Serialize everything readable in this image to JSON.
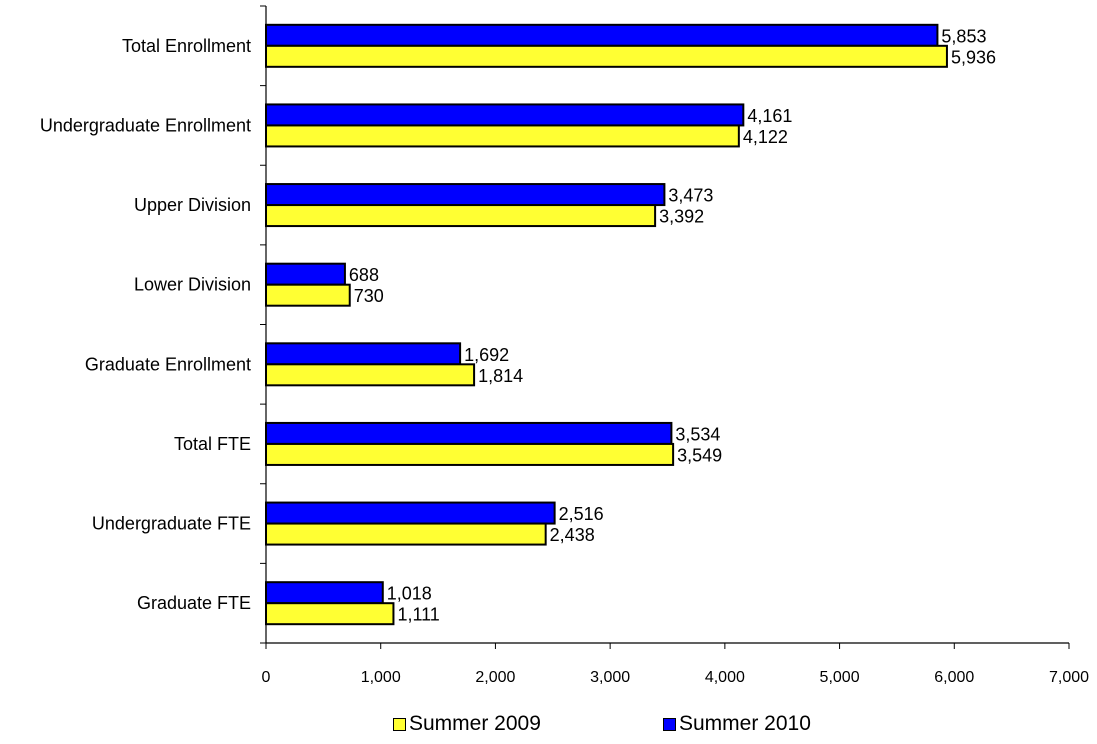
{
  "chart_data": {
    "type": "bar",
    "orientation": "horizontal",
    "title": "",
    "xlabel": "",
    "ylabel": "",
    "categories": [
      "Total Enrollment",
      "Undergraduate Enrollment",
      "Upper Division",
      "Lower Division",
      "Graduate Enrollment",
      "Total FTE",
      "Undergraduate FTE",
      "Graduate FTE"
    ],
    "series": [
      {
        "name": "Summer 2010",
        "color": "#0000FF",
        "values": [
          5853,
          4161,
          3473,
          688,
          1692,
          3534,
          2516,
          1018
        ],
        "labels": [
          "5,853",
          "4,161",
          "3,473",
          "688",
          "1,692",
          "3,534",
          "2,516",
          "1,018"
        ]
      },
      {
        "name": "Summer 2009",
        "color": "#FFFF33",
        "values": [
          5936,
          4122,
          3392,
          730,
          1814,
          3549,
          2438,
          1111
        ],
        "labels": [
          "5,936",
          "4,122",
          "3,392",
          "730",
          "1,814",
          "3,549",
          "2,438",
          "1,111"
        ]
      }
    ],
    "xlim": [
      0,
      7000
    ],
    "xticks": [
      0,
      1000,
      2000,
      3000,
      4000,
      5000,
      6000,
      7000
    ],
    "xtick_labels": [
      "0",
      "1,000",
      "2,000",
      "3,000",
      "4,000",
      "5,000",
      "6,000",
      "7,000"
    ],
    "grid": false,
    "legend_position": "bottom",
    "legend": [
      {
        "name": "Summer 2009",
        "color": "#FFFF33"
      },
      {
        "name": "Summer 2010",
        "color": "#0000FF"
      }
    ]
  }
}
